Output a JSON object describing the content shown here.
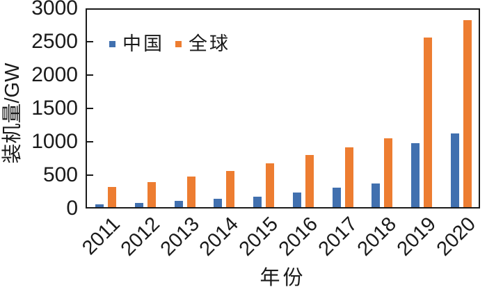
{
  "chart_data": {
    "type": "bar",
    "title": "",
    "categories": [
      "2011",
      "2012",
      "2013",
      "2014",
      "2015",
      "2016",
      "2017",
      "2018",
      "2019",
      "2020"
    ],
    "series": [
      {
        "name": "中国",
        "color": "#4170AF",
        "values": [
          40,
          60,
          90,
          120,
          160,
          220,
          295,
          355,
          960,
          1100
        ]
      },
      {
        "name": "全球",
        "color": "#ED7D31",
        "values": [
          300,
          370,
          460,
          545,
          655,
          785,
          900,
          1035,
          2540,
          2800
        ]
      }
    ],
    "xlabel": "年份",
    "ylabel": "装机量/GW",
    "ylim": [
      0,
      3000
    ],
    "yticks": [
      0,
      500,
      1000,
      1500,
      2000,
      2500,
      3000
    ],
    "grid": false,
    "legend_position": "top-left-inside",
    "axis_color": "#1a1a1a"
  }
}
